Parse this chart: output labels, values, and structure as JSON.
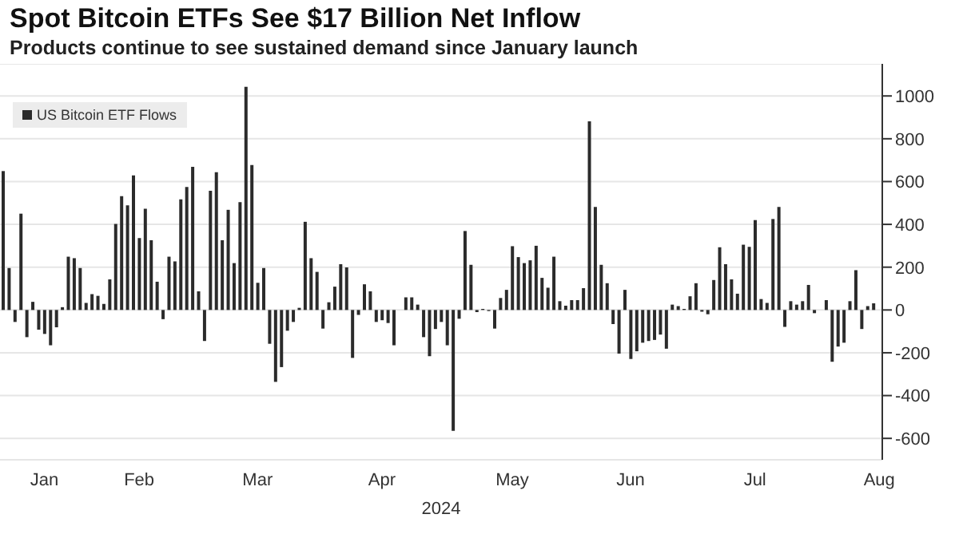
{
  "chart_data": {
    "type": "bar",
    "title": "Spot Bitcoin ETFs See $17 Billion Net Inflow",
    "subtitle": "Products continue to see sustained demand since January launch",
    "xlabel": "2024",
    "categories": [
      null,
      null,
      null,
      null,
      null,
      null,
      null,
      "Jan",
      null,
      null,
      null,
      null,
      null,
      null,
      null,
      null,
      null,
      null,
      null,
      null,
      null,
      null,
      null,
      "Feb",
      null,
      null,
      null,
      null,
      null,
      null,
      null,
      null,
      null,
      null,
      null,
      null,
      null,
      null,
      null,
      null,
      null,
      null,
      null,
      "Mar",
      null,
      null,
      null,
      null,
      null,
      null,
      null,
      null,
      null,
      null,
      null,
      null,
      null,
      null,
      null,
      null,
      null,
      null,
      null,
      null,
      "Apr",
      null,
      null,
      null,
      null,
      null,
      null,
      null,
      null,
      null,
      null,
      null,
      null,
      null,
      null,
      null,
      null,
      null,
      null,
      null,
      null,
      null,
      "May",
      null,
      null,
      null,
      null,
      null,
      null,
      null,
      null,
      null,
      null,
      null,
      null,
      null,
      null,
      null,
      null,
      null,
      null,
      null,
      "Jun",
      null,
      null,
      null,
      null,
      null,
      null,
      null,
      null,
      null,
      null,
      null,
      null,
      null,
      null,
      null,
      null,
      null,
      null,
      null,
      null,
      "Jul",
      null,
      null,
      null,
      null,
      null,
      null,
      null,
      null,
      null,
      null,
      null,
      null,
      null,
      null,
      null,
      null,
      null,
      null,
      null,
      null,
      "Aug"
    ],
    "series": [
      {
        "name": "US Bitcoin ETF Flows",
        "color": "#2b2b2b",
        "values": [
          649,
          196,
          -56,
          450,
          -127,
          38,
          -92,
          -112,
          -165,
          -81,
          13,
          249,
          242,
          196,
          33,
          74,
          66,
          28,
          143,
          402,
          532,
          489,
          629,
          336,
          473,
          326,
          132,
          -43,
          249,
          227,
          517,
          575,
          669,
          87,
          -145,
          557,
          644,
          326,
          468,
          219,
          504,
          1043,
          677,
          127,
          196,
          -158,
          -336,
          -267,
          -97,
          -56,
          10,
          412,
          242,
          178,
          -87,
          36,
          109,
          214,
          199,
          -224,
          -23,
          120,
          87,
          -56,
          -48,
          -61,
          -165,
          0,
          59,
          59,
          25,
          -127,
          -216,
          -89,
          -56,
          -165,
          -565,
          -41,
          369,
          211,
          -10,
          5,
          -5,
          -87,
          56,
          94,
          298,
          247,
          219,
          232,
          300,
          150,
          104,
          249,
          41,
          20,
          46,
          46,
          102,
          881,
          481,
          211,
          125,
          -66,
          -204,
          94,
          -229,
          -193,
          -153,
          -145,
          -140,
          -115,
          -181,
          25,
          18,
          5,
          64,
          125,
          -8,
          -20,
          140,
          293,
          214,
          143,
          76,
          305,
          295,
          420,
          51,
          33,
          425,
          481,
          -79,
          41,
          25,
          41,
          117,
          -15,
          0,
          46,
          -242,
          -171,
          -153,
          41,
          186,
          -89,
          18,
          31,
          null
        ]
      }
    ],
    "ylim": [
      -700,
      1150
    ],
    "yticks": [
      -600,
      -400,
      -200,
      0,
      200,
      400,
      600,
      800,
      1000
    ],
    "grid": "y",
    "legend": "top left"
  }
}
